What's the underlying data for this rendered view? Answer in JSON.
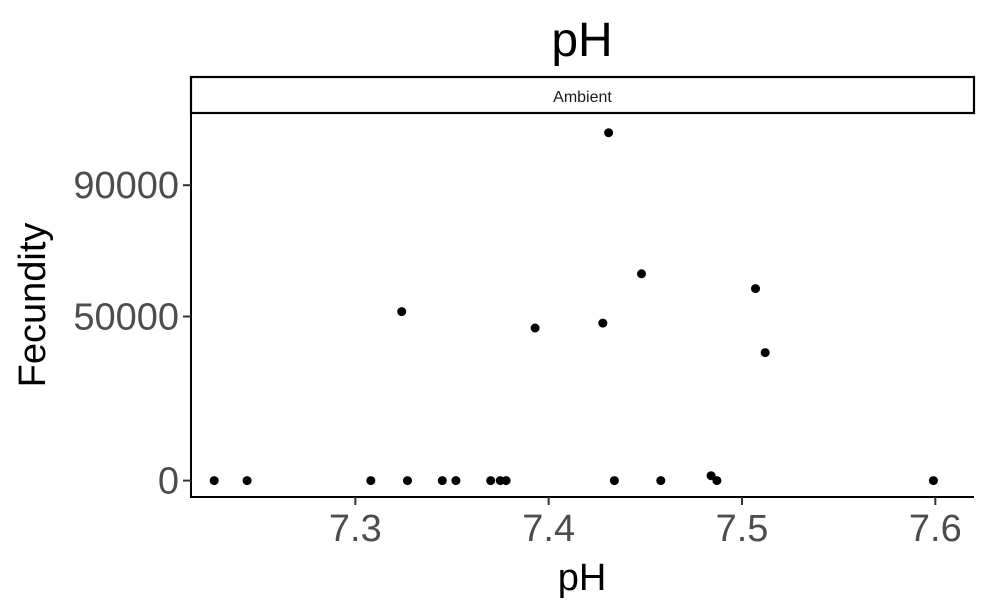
{
  "chart_data": {
    "type": "scatter",
    "title": "pH",
    "xlabel": "pH",
    "ylabel": "Fecundity",
    "facet_label": "Ambient",
    "xlim": [
      7.215,
      7.62
    ],
    "ylim": [
      -5000,
      112000
    ],
    "x_ticks": [
      7.3,
      7.4,
      7.5,
      7.6
    ],
    "x_tick_labels": [
      "7.3",
      "7.4",
      "7.5",
      "7.6"
    ],
    "y_ticks": [
      0,
      50000,
      90000
    ],
    "y_tick_labels": [
      "0",
      "50000",
      "90000"
    ],
    "grid": false,
    "point_color": "#000000",
    "points": [
      {
        "x": 7.227,
        "y": 0
      },
      {
        "x": 7.244,
        "y": 0
      },
      {
        "x": 7.308,
        "y": 0
      },
      {
        "x": 7.324,
        "y": 51500
      },
      {
        "x": 7.327,
        "y": 0
      },
      {
        "x": 7.345,
        "y": 0
      },
      {
        "x": 7.352,
        "y": 0
      },
      {
        "x": 7.37,
        "y": 0
      },
      {
        "x": 7.375,
        "y": 0
      },
      {
        "x": 7.378,
        "y": 0
      },
      {
        "x": 7.393,
        "y": 46500
      },
      {
        "x": 7.428,
        "y": 48000
      },
      {
        "x": 7.431,
        "y": 106000
      },
      {
        "x": 7.434,
        "y": 0
      },
      {
        "x": 7.448,
        "y": 63000
      },
      {
        "x": 7.458,
        "y": 0
      },
      {
        "x": 7.484,
        "y": 1500
      },
      {
        "x": 7.487,
        "y": 0
      },
      {
        "x": 7.507,
        "y": 58500
      },
      {
        "x": 7.512,
        "y": 39000
      },
      {
        "x": 7.599,
        "y": 0
      }
    ]
  }
}
